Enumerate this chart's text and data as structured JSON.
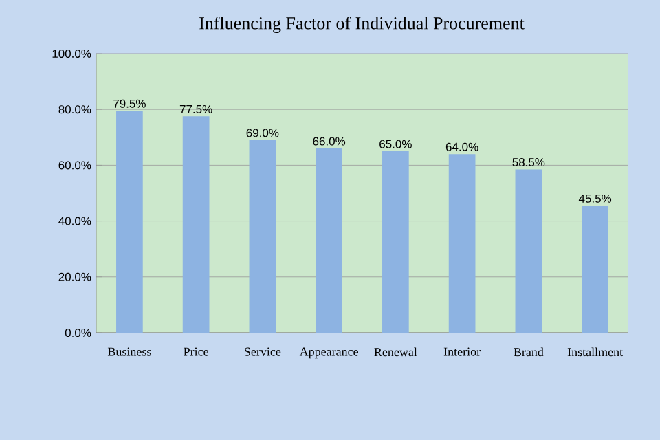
{
  "chart_data": {
    "type": "bar",
    "title": "Influencing Factor of Individual Procurement",
    "categories": [
      "Business",
      "Price",
      "Service",
      "Appearance",
      "Renewal",
      "Interior",
      "Brand",
      "Installment"
    ],
    "values": [
      79.5,
      77.5,
      69.0,
      66.0,
      65.0,
      64.0,
      58.5,
      45.5
    ],
    "value_labels": [
      "79.5%",
      "77.5%",
      "69.0%",
      "66.0%",
      "65.0%",
      "64.0%",
      "58.5%",
      "45.5%"
    ],
    "color": "#8db3e2",
    "ylim": [
      0,
      100
    ],
    "yticks": [
      {
        "value": 0,
        "label": "0.0%"
      },
      {
        "value": 20,
        "label": "20.0%"
      },
      {
        "value": 40,
        "label": "40.0%"
      },
      {
        "value": 60,
        "label": "60.0%"
      },
      {
        "value": 80,
        "label": "80.0%"
      },
      {
        "value": 100,
        "label": "100.0%"
      }
    ],
    "grid": "y"
  }
}
